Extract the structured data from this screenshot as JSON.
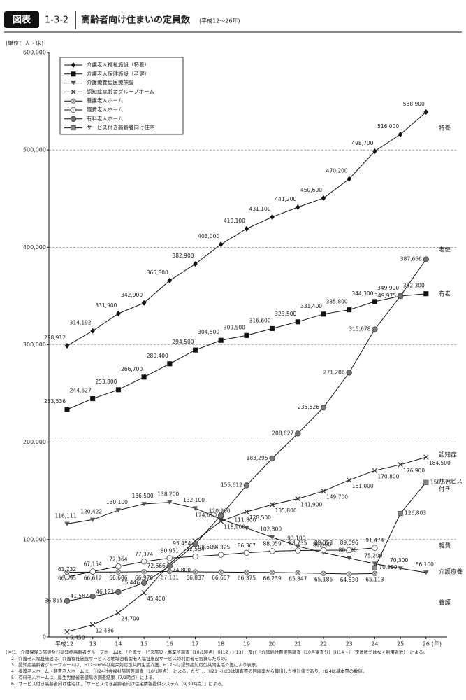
{
  "header": {
    "badge": "図表",
    "number": "1-3-2",
    "title": "高齢者向け住まいの定員数",
    "subtitle": "(平成12〜26年)"
  },
  "chart_data": {
    "type": "line",
    "unit": "(単位：人・床)",
    "categories": [
      "平成12",
      "13",
      "14",
      "15",
      "16",
      "17",
      "18",
      "19",
      "20",
      "21",
      "22",
      "23",
      "24",
      "25",
      "26"
    ],
    "x_unit": "(年)",
    "ylim": [
      0,
      600000
    ],
    "yticks": [
      {
        "value": 0,
        "label": "0"
      },
      {
        "value": 100000,
        "label": "100,000"
      },
      {
        "value": 200000,
        "label": "200,000"
      },
      {
        "value": 300000,
        "label": "300,000"
      },
      {
        "value": 400000,
        "label": "400,000"
      },
      {
        "value": 500000,
        "label": "500,000"
      },
      {
        "value": 600000,
        "label": "600,000"
      }
    ],
    "grid": true,
    "legend": "upper left",
    "series": [
      {
        "name": "介護老人福祉施設（特養）",
        "end_label": [
          "特養"
        ],
        "marker": "diamond",
        "color": "#111111",
        "values": [
          298912,
          314192,
          331900,
          342900,
          365800,
          382900,
          403000,
          419100,
          431100,
          441200,
          450600,
          470200,
          498700,
          516000,
          538900
        ],
        "value_labels": [
          "298,912",
          "314,192",
          "331,900",
          "342,900",
          "365,800",
          "382,900",
          "403,000",
          "419,100",
          "431,100",
          "441,200",
          "450,600",
          "470,200",
          "498,700",
          "516,000",
          "538,900"
        ]
      },
      {
        "name": "介護老人保健施設（老健）",
        "end_label": [
          "老健"
        ],
        "marker": "square",
        "color": "#111111",
        "values": [
          233536,
          244627,
          253800,
          266700,
          280400,
          294500,
          304500,
          309500,
          316600,
          323500,
          331400,
          335800,
          344300,
          349900,
          352300
        ],
        "value_labels": [
          "233,536",
          "244,627",
          "253,800",
          "266,700",
          "280,400",
          "294,500",
          "304,500",
          "309,500",
          "316,600",
          "323,500",
          "331,400",
          "335,800",
          "344,300",
          "349,900",
          "352,300"
        ]
      },
      {
        "name": "介護療養型医療施設",
        "end_label": [
          "介護療養"
        ],
        "marker": "triangle",
        "color": "#555555",
        "values": [
          116111,
          120422,
          130100,
          136500,
          138200,
          132100,
          120900,
          111800,
          102300,
          93100,
          86500,
          80900,
          75200,
          70300,
          66100
        ],
        "value_labels": [
          "116,111",
          "120,422",
          "130,100",
          "136,500",
          "138,200",
          "132,100",
          "120,900",
          "111,800",
          "102,300",
          "93,100",
          "86,500",
          "80,900",
          "75,200",
          "70,300",
          "66,100"
        ]
      },
      {
        "name": "認知症高齢者グループホーム",
        "end_label": [
          "認知症"
        ],
        "marker": "x",
        "color": "#333333",
        "values": [
          5450,
          12486,
          24700,
          45400,
          74800,
          98500,
          118900,
          128500,
          135800,
          141900,
          149700,
          161000,
          170800,
          176900,
          184500
        ],
        "value_labels": [
          "5,450",
          "12,486",
          "24,700",
          "45,400",
          "74,800",
          "98,500",
          "118,900",
          "128,500",
          "135,800",
          "141,900",
          "149,700",
          "161,000",
          "170,800",
          "176,900",
          "184,500"
        ]
      },
      {
        "name": "養護老人ホーム",
        "end_label": [
          "養護"
        ],
        "marker": "xcircle",
        "color": "#666666",
        "values": [
          66495,
          66612,
          66686,
          66970,
          67181,
          66837,
          66667,
          66375,
          66239,
          65847,
          65186,
          64630,
          65113,
          null,
          null
        ],
        "value_labels": [
          "66,495",
          "66,612",
          "66,686",
          "66,970",
          "67,181",
          "66,837",
          "66,667",
          "66,375",
          "66,239",
          "65,847",
          "65,186",
          "64,630",
          "65,113",
          null,
          null
        ]
      },
      {
        "name": "軽費老人ホーム",
        "end_label": [
          "軽費"
        ],
        "marker": "circle",
        "color": "#ffffff",
        "values": [
          61732,
          67154,
          72364,
          77374,
          80951,
          82594,
          84325,
          86367,
          88059,
          88735,
          89053,
          89096,
          91474,
          null,
          null
        ],
        "value_labels": [
          "61,732",
          "67,154",
          "72,364",
          "77,374",
          "80,951",
          "82,594",
          "84,325",
          "86,367",
          "88,059",
          "88,735",
          "89,053",
          "89,096",
          "91,474",
          null,
          null
        ]
      },
      {
        "name": "有料老人ホーム",
        "end_label": [
          "有老"
        ],
        "marker": "circle",
        "color": "#777777",
        "values": [
          36855,
          41582,
          46121,
          55446,
          72666,
          95454,
          124610,
          155612,
          183295,
          208827,
          235526,
          271286,
          315678,
          349975,
          387666
        ],
        "value_labels": [
          "36,855",
          "41,582",
          "46,121",
          "55,446",
          "72,666",
          "95,454",
          "124,610",
          "155,612",
          "183,295",
          "208,827",
          "235,526",
          "271,286",
          "315,678",
          "349,975",
          "387,666"
        ]
      },
      {
        "name": "サービス付き高齢者向け住宅",
        "end_label": [
          "サービス",
          "付き"
        ],
        "marker": "square",
        "color": "#888888",
        "values": [
          null,
          null,
          null,
          null,
          null,
          null,
          null,
          null,
          null,
          null,
          null,
          null,
          70999,
          126803,
          158579
        ],
        "value_labels": [
          null,
          null,
          null,
          null,
          null,
          null,
          null,
          null,
          null,
          null,
          null,
          null,
          "70,999",
          "126,803",
          "158,579"
        ]
      }
    ]
  },
  "notes": {
    "label": "(注)",
    "items": [
      "1　介護保険３施設及び認知症高齢者グループホームは、「介護サービス施設・事業所調査（10/1時点）［H12・H13］」及び「介護給付費実態調査（10月審査分）［H14〜］（定員数ではなく利用者数）」による。",
      "2　介護老人福祉施設は、介護福祉施設サービスと地域密着型老人福祉施設サービスの利用者を合算したもの。",
      "3　認知症高齢者グループホームは、H12〜H16は痴呆対応型共同生活介護、H17〜は認知症対応型共同生活介護により表示。",
      "4　養護老人ホーム・軽費老人ホームは、「H24社会福祉施設等調査（10/1時点）」による。ただし、H21〜H23は調査票の回収率から算出した推計値であり、H24は基本票の数値。",
      "5　有料老人ホームは、厚生労働省老健局の調査結果（7/1時点）による。",
      "6　サービス付き高齢者向け住宅は、「サービス付き高齢者向け住宅情報提供システム（9/30時点）」による。"
    ]
  }
}
